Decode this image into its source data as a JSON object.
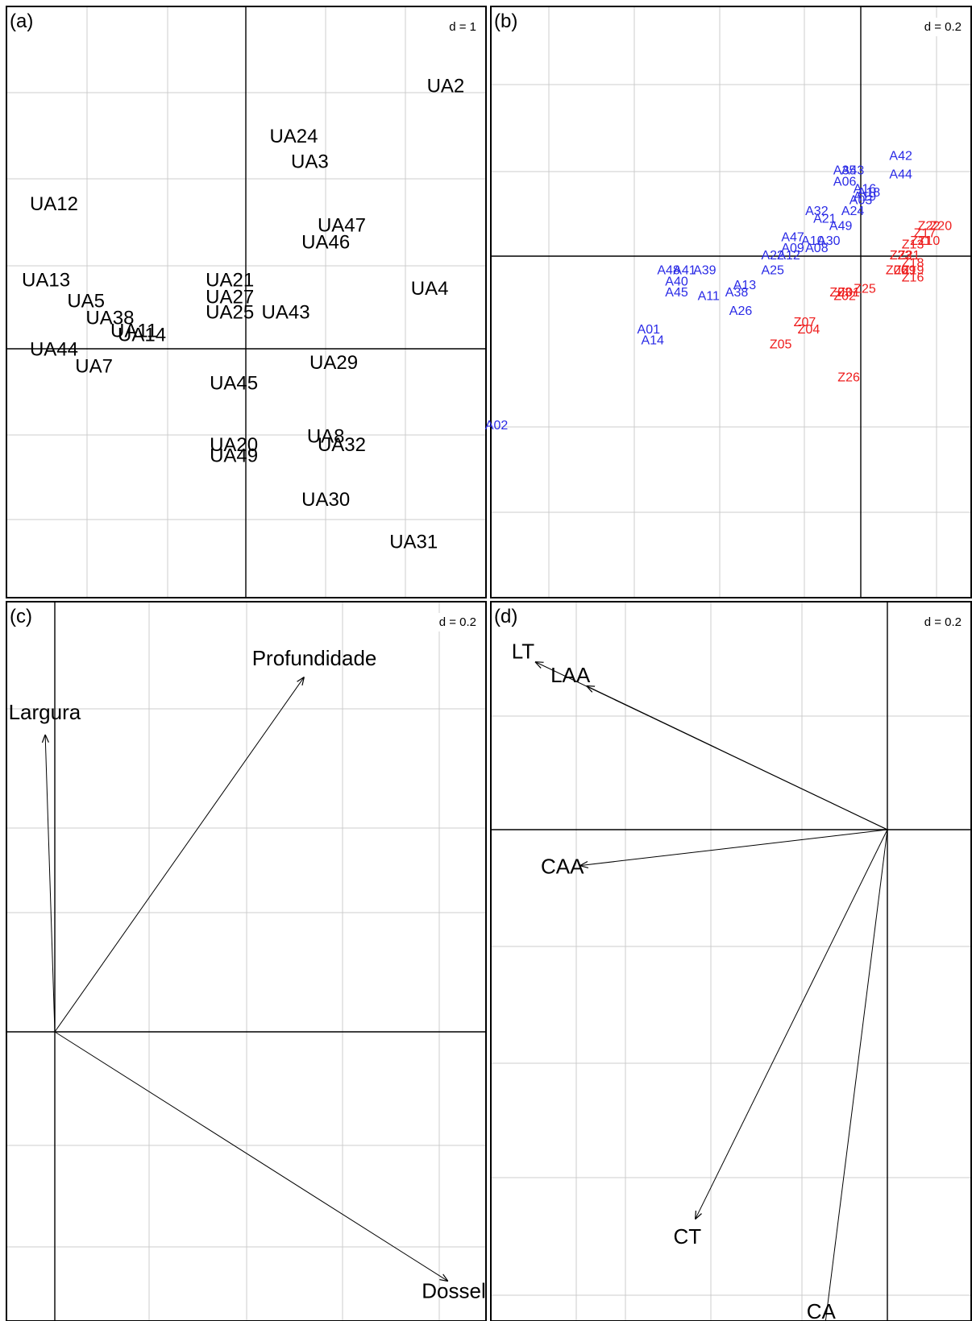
{
  "chart_data": [
    {
      "panel": "a",
      "type": "scatter",
      "panel_label": "(a)",
      "scale_label": "d = 1",
      "grid": true,
      "xlim": [
        -3,
        3
      ],
      "ylim": [
        -3,
        4
      ],
      "points": [
        {
          "label": "UA2",
          "x": 2.5,
          "y": 3.1
        },
        {
          "label": "UA24",
          "x": 0.6,
          "y": 2.5
        },
        {
          "label": "UA3",
          "x": 0.8,
          "y": 2.2
        },
        {
          "label": "UA12",
          "x": -2.4,
          "y": 1.7
        },
        {
          "label": "UA47",
          "x": 1.2,
          "y": 1.45
        },
        {
          "label": "UA46",
          "x": 1.0,
          "y": 1.25
        },
        {
          "label": "UA13",
          "x": -2.5,
          "y": 0.8
        },
        {
          "label": "UA21",
          "x": -0.2,
          "y": 0.8
        },
        {
          "label": "UA27",
          "x": -0.2,
          "y": 0.6
        },
        {
          "label": "UA4",
          "x": 2.3,
          "y": 0.7
        },
        {
          "label": "UA5",
          "x": -2.0,
          "y": 0.55
        },
        {
          "label": "UA25",
          "x": -0.2,
          "y": 0.42
        },
        {
          "label": "UA43",
          "x": 0.5,
          "y": 0.42
        },
        {
          "label": "UA38",
          "x": -1.7,
          "y": 0.35
        },
        {
          "label": "UA11",
          "x": -1.4,
          "y": 0.2
        },
        {
          "label": "UA14",
          "x": -1.3,
          "y": 0.15
        },
        {
          "label": "UA44",
          "x": -2.4,
          "y": -0.02
        },
        {
          "label": "UA7",
          "x": -1.9,
          "y": -0.22
        },
        {
          "label": "UA29",
          "x": 1.1,
          "y": -0.18
        },
        {
          "label": "UA45",
          "x": -0.15,
          "y": -0.42
        },
        {
          "label": "UA8",
          "x": 1.0,
          "y": -1.05
        },
        {
          "label": "UA32",
          "x": 1.2,
          "y": -1.15
        },
        {
          "label": "UA20",
          "x": -0.15,
          "y": -1.15
        },
        {
          "label": "UA49",
          "x": -0.15,
          "y": -1.28
        },
        {
          "label": "UA30",
          "x": 1.0,
          "y": -1.8
        },
        {
          "label": "UA31",
          "x": 2.1,
          "y": -2.3
        }
      ]
    },
    {
      "panel": "b",
      "type": "scatter",
      "panel_label": "(b)",
      "scale_label": "d = 0.2",
      "grid": true,
      "xlim": [
        -1.0,
        0.2
      ],
      "ylim": [
        -0.9,
        0.7
      ],
      "group_colors": {
        "A": "#2a2ae6",
        "Z": "#ee1c1c"
      },
      "points": [
        {
          "label": "A42",
          "g": "A",
          "x": 0.1,
          "y": 0.27
        },
        {
          "label": "A44",
          "g": "A",
          "x": 0.1,
          "y": 0.22
        },
        {
          "label": "A35",
          "g": "A",
          "x": -0.04,
          "y": 0.23
        },
        {
          "label": "A43",
          "g": "A",
          "x": -0.02,
          "y": 0.23
        },
        {
          "label": "A06",
          "g": "A",
          "x": -0.04,
          "y": 0.2
        },
        {
          "label": "A16",
          "g": "A",
          "x": 0.01,
          "y": 0.18
        },
        {
          "label": "A18",
          "g": "A",
          "x": 0.02,
          "y": 0.17
        },
        {
          "label": "A19",
          "g": "A",
          "x": 0.01,
          "y": 0.16
        },
        {
          "label": "A03",
          "g": "A",
          "x": 0.0,
          "y": 0.15
        },
        {
          "label": "A24",
          "g": "A",
          "x": -0.02,
          "y": 0.12
        },
        {
          "label": "A21",
          "g": "A",
          "x": -0.09,
          "y": 0.1
        },
        {
          "label": "A32",
          "g": "A",
          "x": -0.11,
          "y": 0.12
        },
        {
          "label": "A49",
          "g": "A",
          "x": -0.05,
          "y": 0.08
        },
        {
          "label": "A47",
          "g": "A",
          "x": -0.17,
          "y": 0.05
        },
        {
          "label": "A10",
          "g": "A",
          "x": -0.12,
          "y": 0.04
        },
        {
          "label": "A30",
          "g": "A",
          "x": -0.08,
          "y": 0.04
        },
        {
          "label": "A08",
          "g": "A",
          "x": -0.11,
          "y": 0.02
        },
        {
          "label": "A09",
          "g": "A",
          "x": -0.17,
          "y": 0.02
        },
        {
          "label": "A22",
          "g": "A",
          "x": -0.22,
          "y": 0.0
        },
        {
          "label": "A12",
          "g": "A",
          "x": -0.18,
          "y": 0.0
        },
        {
          "label": "A25",
          "g": "A",
          "x": -0.22,
          "y": -0.04
        },
        {
          "label": "A48",
          "g": "A",
          "x": -0.48,
          "y": -0.04
        },
        {
          "label": "A41",
          "g": "A",
          "x": -0.44,
          "y": -0.04
        },
        {
          "label": "A39",
          "g": "A",
          "x": -0.39,
          "y": -0.04
        },
        {
          "label": "A40",
          "g": "A",
          "x": -0.46,
          "y": -0.07
        },
        {
          "label": "A45",
          "g": "A",
          "x": -0.46,
          "y": -0.1
        },
        {
          "label": "A11",
          "g": "A",
          "x": -0.38,
          "y": -0.11
        },
        {
          "label": "A13",
          "g": "A",
          "x": -0.29,
          "y": -0.08
        },
        {
          "label": "A38",
          "g": "A",
          "x": -0.31,
          "y": -0.1
        },
        {
          "label": "A26",
          "g": "A",
          "x": -0.3,
          "y": -0.15
        },
        {
          "label": "A01",
          "g": "A",
          "x": -0.53,
          "y": -0.2
        },
        {
          "label": "A14",
          "g": "A",
          "x": -0.52,
          "y": -0.23
        },
        {
          "label": "A02",
          "g": "A",
          "x": -0.91,
          "y": -0.46
        },
        {
          "label": "Z22",
          "g": "Z",
          "x": 0.17,
          "y": 0.08
        },
        {
          "label": "Z20",
          "g": "Z",
          "x": 0.2,
          "y": 0.08
        },
        {
          "label": "Z17",
          "g": "Z",
          "x": 0.16,
          "y": 0.06
        },
        {
          "label": "Z10",
          "g": "Z",
          "x": 0.17,
          "y": 0.04
        },
        {
          "label": "Z11",
          "g": "Z",
          "x": 0.15,
          "y": 0.04
        },
        {
          "label": "Z13",
          "g": "Z",
          "x": 0.13,
          "y": 0.03
        },
        {
          "label": "Z21",
          "g": "Z",
          "x": 0.12,
          "y": 0.0
        },
        {
          "label": "Z23",
          "g": "Z",
          "x": 0.1,
          "y": 0.0
        },
        {
          "label": "Z18",
          "g": "Z",
          "x": 0.13,
          "y": -0.02
        },
        {
          "label": "Z19",
          "g": "Z",
          "x": 0.13,
          "y": -0.04
        },
        {
          "label": "Z09",
          "g": "Z",
          "x": 0.11,
          "y": -0.04
        },
        {
          "label": "Z06",
          "g": "Z",
          "x": 0.09,
          "y": -0.04
        },
        {
          "label": "Z16",
          "g": "Z",
          "x": 0.13,
          "y": -0.06
        },
        {
          "label": "Z25",
          "g": "Z",
          "x": 0.01,
          "y": -0.09
        },
        {
          "label": "Z03",
          "g": "Z",
          "x": -0.05,
          "y": -0.1
        },
        {
          "label": "Z01",
          "g": "Z",
          "x": -0.03,
          "y": -0.1
        },
        {
          "label": "Z02",
          "g": "Z",
          "x": -0.04,
          "y": -0.11
        },
        {
          "label": "Z07",
          "g": "Z",
          "x": -0.14,
          "y": -0.18
        },
        {
          "label": "Z04",
          "g": "Z",
          "x": -0.13,
          "y": -0.2
        },
        {
          "label": "Z05",
          "g": "Z",
          "x": -0.2,
          "y": -0.24
        },
        {
          "label": "Z26",
          "g": "Z",
          "x": -0.03,
          "y": -0.33
        }
      ]
    },
    {
      "panel": "c",
      "type": "biplot-arrows",
      "panel_label": "(c)",
      "scale_label": "d = 0.2",
      "grid": true,
      "xlim": [
        -0.05,
        0.45
      ],
      "ylim": [
        -0.3,
        0.45
      ],
      "arrows": [
        {
          "label": "Profundidade",
          "x": 0.26,
          "y": 0.37
        },
        {
          "label": "Largura",
          "x": -0.01,
          "y": 0.31
        },
        {
          "label": "Dossel",
          "x": 0.41,
          "y": -0.26
        }
      ]
    },
    {
      "panel": "d",
      "type": "biplot-arrows",
      "panel_label": "(d)",
      "scale_label": "d = 0.2",
      "grid": true,
      "xlim": [
        -0.7,
        0.05
      ],
      "ylim": [
        -0.85,
        0.35
      ],
      "arrows": [
        {
          "label": "LT",
          "x": -0.55,
          "y": 0.28
        },
        {
          "label": "LAA",
          "x": -0.47,
          "y": 0.24
        },
        {
          "label": "CAA",
          "x": -0.48,
          "y": -0.06
        },
        {
          "label": "CT",
          "x": -0.3,
          "y": -0.65
        },
        {
          "label": "CA",
          "x": -0.1,
          "y": -0.85
        }
      ]
    }
  ]
}
